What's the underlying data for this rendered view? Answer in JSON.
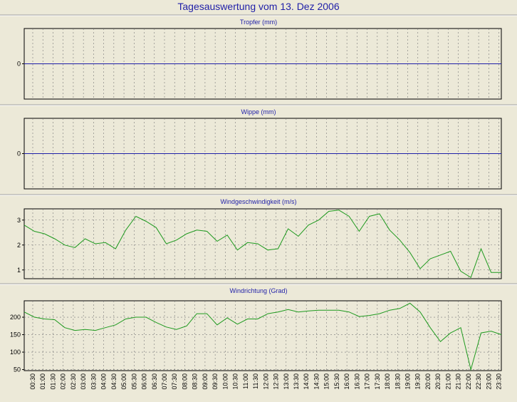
{
  "page_title": "Tagesauswertung vom 13. Dez 2006",
  "colors": {
    "background": "#ece9d8",
    "title": "#1f1fa8",
    "plot_background": "#ece9d8",
    "zero_line": "#1f1fa8",
    "series_line": "#1f9a1f",
    "grid": "#777777"
  },
  "x_tick_labels": [
    "00:30",
    "01:00",
    "01:30",
    "02:00",
    "02:30",
    "03:00",
    "03:30",
    "04:00",
    "04:30",
    "05:00",
    "05:30",
    "06:00",
    "06:30",
    "07:00",
    "07:30",
    "08:00",
    "08:30",
    "09:00",
    "09:30",
    "10:00",
    "10:30",
    "11:00",
    "11:30",
    "12:00",
    "12:30",
    "13:00",
    "13:30",
    "14:00",
    "14:30",
    "15:00",
    "15:30",
    "16:00",
    "16:30",
    "17:00",
    "17:30",
    "18:00",
    "18:30",
    "19:00",
    "19:30",
    "20:00",
    "20:30",
    "21:00",
    "21:30",
    "22:00",
    "22:30",
    "23:00",
    "23:30"
  ],
  "chart_data": [
    {
      "type": "line",
      "title": "Tropfer (mm)",
      "yticks": [
        0
      ],
      "ylim": [
        -1,
        1
      ],
      "series": [
        {
          "values": []
        }
      ],
      "zero_line": true
    },
    {
      "type": "line",
      "title": "Wippe (mm)",
      "yticks": [
        0
      ],
      "ylim": [
        -1,
        1
      ],
      "series": [
        {
          "values": []
        }
      ],
      "zero_line": true
    },
    {
      "type": "line",
      "title": "Windgeschwindigkeit (m/s)",
      "yticks": [
        1,
        2,
        3
      ],
      "ylim": [
        0.65,
        3.45
      ],
      "x": [
        "00:00",
        "00:30",
        "01:00",
        "01:30",
        "02:00",
        "02:30",
        "03:00",
        "03:30",
        "04:00",
        "04:30",
        "05:00",
        "05:30",
        "06:00",
        "06:30",
        "07:00",
        "07:30",
        "08:00",
        "08:30",
        "09:00",
        "09:30",
        "10:00",
        "10:30",
        "11:00",
        "11:30",
        "12:00",
        "12:30",
        "13:00",
        "13:30",
        "14:00",
        "14:30",
        "15:00",
        "15:30",
        "16:00",
        "16:30",
        "17:00",
        "17:30",
        "18:00",
        "18:30",
        "19:00",
        "19:30",
        "20:00",
        "20:30",
        "21:00",
        "21:30",
        "22:00",
        "22:30",
        "23:00",
        "23:30"
      ],
      "series": [
        {
          "values": [
            2.8,
            2.55,
            2.45,
            2.25,
            2.0,
            1.9,
            2.25,
            2.05,
            2.1,
            1.85,
            2.6,
            3.15,
            2.95,
            2.7,
            2.05,
            2.2,
            2.45,
            2.6,
            2.55,
            2.15,
            2.4,
            1.8,
            2.1,
            2.05,
            1.8,
            1.85,
            2.65,
            2.35,
            2.8,
            3.0,
            3.35,
            3.4,
            3.15,
            2.55,
            3.15,
            3.25,
            2.6,
            2.2,
            1.7,
            1.05,
            1.45,
            1.6,
            1.75,
            0.95,
            0.7,
            1.85,
            0.9,
            0.9
          ]
        }
      ]
    },
    {
      "type": "line",
      "title": "Windrichtung (Grad)",
      "yticks": [
        50,
        100,
        150,
        200
      ],
      "ylim": [
        47,
        247
      ],
      "x": [
        "00:00",
        "00:30",
        "01:00",
        "01:30",
        "02:00",
        "02:30",
        "03:00",
        "03:30",
        "04:00",
        "04:30",
        "05:00",
        "05:30",
        "06:00",
        "06:30",
        "07:00",
        "07:30",
        "08:00",
        "08:30",
        "09:00",
        "09:30",
        "10:00",
        "10:30",
        "11:00",
        "11:30",
        "12:00",
        "12:30",
        "13:00",
        "13:30",
        "14:00",
        "14:30",
        "15:00",
        "15:30",
        "16:00",
        "16:30",
        "17:00",
        "17:30",
        "18:00",
        "18:30",
        "19:00",
        "19:30",
        "20:00",
        "20:30",
        "21:00",
        "21:30",
        "22:00",
        "22:30",
        "23:00",
        "23:30"
      ],
      "series": [
        {
          "values": [
            215,
            200,
            195,
            193,
            170,
            162,
            165,
            162,
            170,
            178,
            195,
            200,
            200,
            185,
            172,
            165,
            175,
            210,
            210,
            178,
            198,
            180,
            195,
            195,
            210,
            215,
            222,
            215,
            218,
            220,
            220,
            220,
            215,
            202,
            205,
            210,
            220,
            225,
            240,
            215,
            170,
            130,
            155,
            170,
            50,
            155,
            160,
            150
          ]
        }
      ]
    }
  ]
}
